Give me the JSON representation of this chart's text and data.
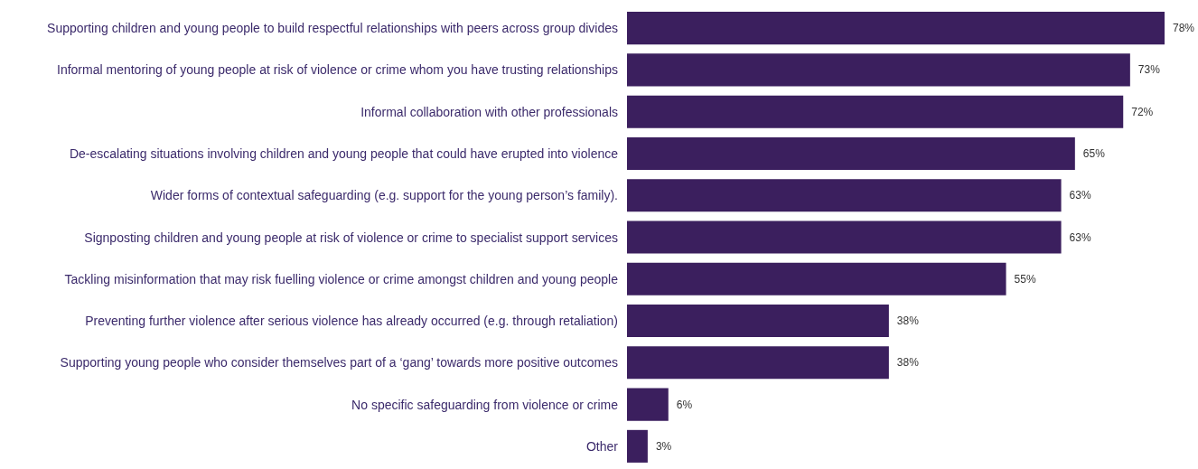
{
  "chart_data": {
    "type": "bar",
    "orientation": "horizontal",
    "categories": [
      "Supporting children and young people to build respectful relationships with peers across group divides",
      "Informal mentoring of young people at risk of violence or crime whom you have trusting relationships",
      "Informal collaboration with other professionals",
      "De-escalating situations involving children and young people that could have erupted into violence",
      "Wider forms of contextual safeguarding (e.g. support for the young person’s family).",
      "Signposting children and young people at risk of violence or crime to specialist support services",
      "Tackling misinformation that may risk fuelling violence or crime amongst children and young people",
      "Preventing further violence after serious violence has already occurred (e.g. through retaliation)",
      "Supporting young people who consider themselves part of a ‘gang’ towards more positive outcomes",
      "No specific safeguarding from violence or crime",
      "Other"
    ],
    "values": [
      78,
      73,
      72,
      65,
      63,
      63,
      55,
      38,
      38,
      6,
      3
    ],
    "value_labels": [
      "78%",
      "73%",
      "72%",
      "65%",
      "63%",
      "63%",
      "55%",
      "38%",
      "38%",
      "6%",
      "3%"
    ],
    "color": "#3b1f5e"
  }
}
